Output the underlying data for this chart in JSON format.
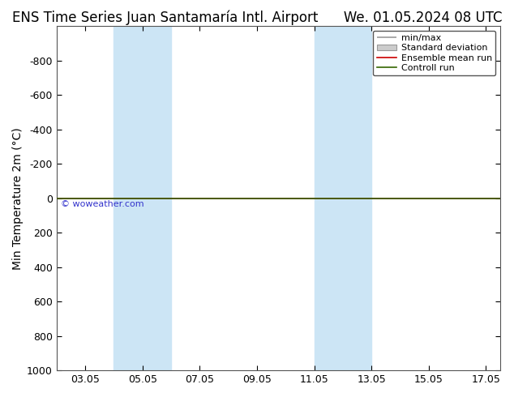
{
  "title_left": "ENS Time Series Juan Santamaría Intl. Airport",
  "title_right": "We. 01.05.2024 08 UTC",
  "ylabel": "Min Temperature 2m (°C)",
  "xtick_labels": [
    "03.05",
    "05.05",
    "07.05",
    "09.05",
    "11.05",
    "13.05",
    "15.05",
    "17.05"
  ],
  "xtick_positions": [
    3,
    5,
    7,
    9,
    11,
    13,
    15,
    17
  ],
  "ytick_positions": [
    -800,
    -600,
    -400,
    -200,
    0,
    200,
    400,
    600,
    800,
    1000
  ],
  "ytick_labels": [
    "-800",
    "-600",
    "-400",
    "-200",
    "0",
    "200",
    "400",
    "600",
    "800",
    "1000"
  ],
  "background_color": "#ffffff",
  "plot_bg_color": "#ffffff",
  "shaded_bands": [
    {
      "x_start": 4.0,
      "x_end": 6.0,
      "color": "#cce5f5"
    },
    {
      "x_start": 11.0,
      "x_end": 13.0,
      "color": "#cce5f5"
    }
  ],
  "green_line_color": "#336600",
  "red_line_color": "#cc0000",
  "watermark": "© woweather.com",
  "watermark_color": "#3333cc",
  "legend_items": [
    {
      "label": "min/max"
    },
    {
      "label": "Standard deviation"
    },
    {
      "label": "Ensemble mean run"
    },
    {
      "label": "Controll run"
    }
  ],
  "title_fontsize": 12,
  "axis_label_fontsize": 10,
  "tick_fontsize": 9,
  "xlim": [
    2.0,
    17.5
  ],
  "ylim_bottom": 1000,
  "ylim_top": -1000
}
